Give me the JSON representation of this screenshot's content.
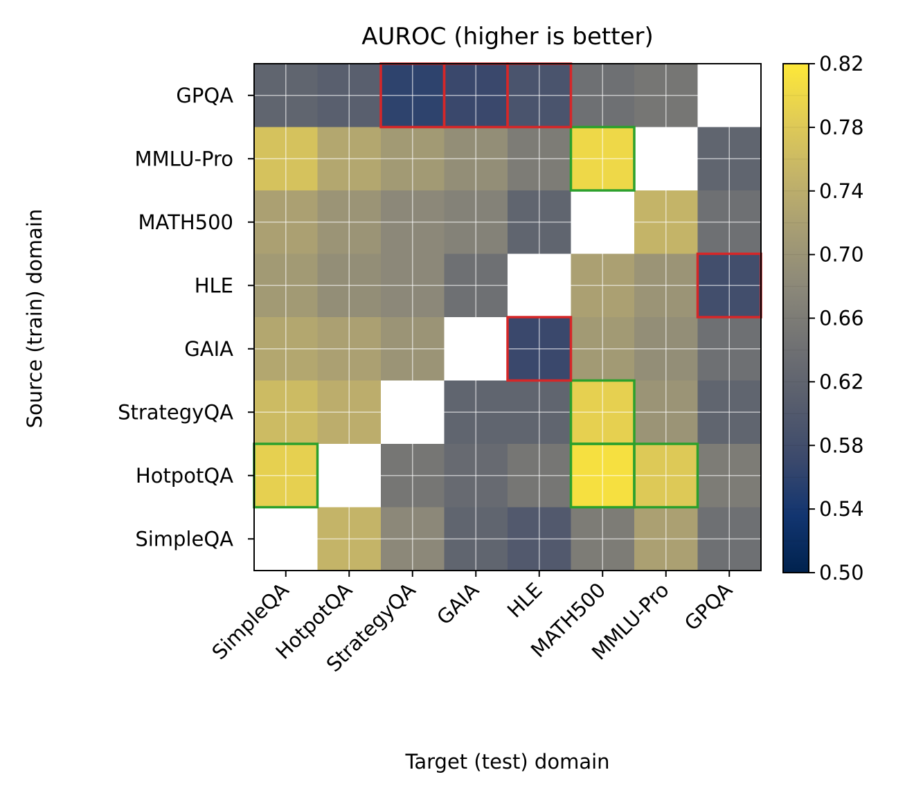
{
  "chart_data": {
    "type": "heatmap",
    "title": "AUROC (higher is better)",
    "xlabel": "Target (test) domain",
    "ylabel": "Source (train) domain",
    "x_categories": [
      "SimpleQA",
      "HotpotQA",
      "StrategyQA",
      "GAIA",
      "HLE",
      "MATH500",
      "MMLU-Pro",
      "GPQA"
    ],
    "y_categories": [
      "GPQA",
      "MMLU-Pro",
      "MATH500",
      "HLE",
      "GAIA",
      "StrategyQA",
      "HotpotQA",
      "SimpleQA"
    ],
    "values": [
      [
        0.62,
        0.61,
        0.56,
        0.57,
        0.59,
        0.64,
        0.65,
        null
      ],
      [
        0.77,
        0.73,
        0.71,
        0.69,
        0.66,
        0.8,
        null,
        0.62
      ],
      [
        0.72,
        0.7,
        0.68,
        0.67,
        0.62,
        null,
        0.75,
        0.64
      ],
      [
        0.71,
        0.69,
        0.68,
        0.64,
        null,
        0.72,
        0.7,
        0.58
      ],
      [
        0.73,
        0.72,
        0.7,
        null,
        0.57,
        0.71,
        0.69,
        0.64
      ],
      [
        0.76,
        0.74,
        null,
        0.62,
        0.62,
        0.79,
        0.7,
        0.62
      ],
      [
        0.79,
        null,
        0.65,
        0.63,
        0.65,
        0.81,
        0.78,
        0.66
      ],
      [
        null,
        0.75,
        0.68,
        0.62,
        0.6,
        0.66,
        0.72,
        0.64
      ]
    ],
    "highlights_green": [
      [
        6,
        0
      ],
      [
        1,
        5
      ],
      [
        5,
        5
      ],
      [
        6,
        5
      ],
      [
        6,
        6
      ]
    ],
    "highlights_red": [
      [
        0,
        2
      ],
      [
        0,
        3
      ],
      [
        0,
        4
      ],
      [
        3,
        7
      ],
      [
        4,
        4
      ]
    ],
    "colorbar": {
      "min": 0.5,
      "max": 0.82,
      "ticks": [
        "0.50",
        "0.54",
        "0.58",
        "0.62",
        "0.66",
        "0.70",
        "0.74",
        "0.78",
        "0.82"
      ],
      "colormap": "cividis",
      "stops": [
        "#00224e",
        "#123570",
        "#3b496c",
        "#575d6d",
        "#707173",
        "#8a8779",
        "#a59c74",
        "#c3b369",
        "#e1cc55",
        "#fee838"
      ]
    },
    "grid": true,
    "outline_colors": {
      "best": "#2ca02c",
      "worst": "#d62728"
    }
  }
}
